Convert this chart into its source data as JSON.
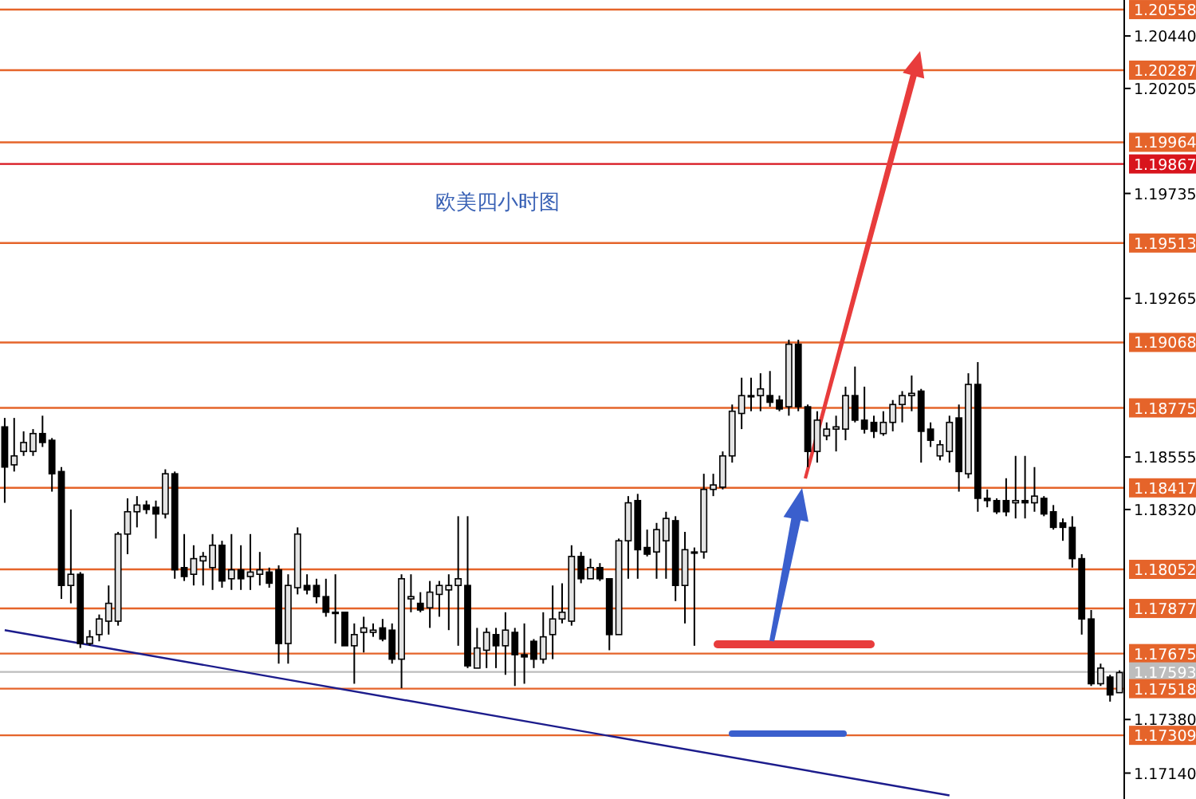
{
  "chart_data": {
    "type": "candlestick",
    "title": "欧美四小时图",
    "categories": [
      null,
      null,
      null,
      null,
      null,
      null,
      null,
      null,
      null,
      null,
      null,
      null,
      null,
      null,
      null,
      null,
      null,
      null,
      null,
      null,
      null,
      null,
      null,
      null,
      null,
      null,
      null,
      null,
      null,
      null,
      null,
      null,
      null,
      null,
      null,
      null,
      null,
      null,
      null,
      null,
      null,
      null,
      null,
      null,
      null,
      null,
      null,
      null,
      null,
      null,
      null,
      null,
      null,
      null,
      null,
      null,
      null,
      null,
      null,
      null,
      null,
      null,
      null,
      null,
      null,
      null,
      null,
      null,
      null,
      null,
      null,
      null,
      null,
      null,
      null,
      null,
      null,
      null,
      null,
      null,
      null,
      null,
      null,
      null,
      null,
      null,
      null,
      null,
      null,
      null,
      null,
      null,
      null,
      null,
      null,
      null,
      null,
      null,
      null,
      null,
      null,
      null,
      null,
      null,
      null,
      null,
      null,
      null,
      null,
      null,
      null,
      null,
      null,
      null,
      null,
      null,
      null,
      null,
      null
    ],
    "series": [
      {
        "type": "line",
        "color": "#1c1c8c",
        "values": [
          1.1778,
          null,
          null,
          null,
          null,
          null,
          null,
          null,
          null,
          null,
          null,
          null,
          null,
          null,
          null,
          null,
          null,
          null,
          null,
          null,
          null,
          null,
          null,
          null,
          null,
          null,
          null,
          null,
          null,
          null,
          null,
          null,
          null,
          null,
          null,
          null,
          null,
          null,
          null,
          null,
          null,
          null,
          null,
          null,
          null,
          null,
          null,
          null,
          null,
          null,
          null,
          null,
          null,
          null,
          null,
          null,
          null,
          null,
          null,
          null,
          null,
          null,
          null,
          null,
          null,
          null,
          null,
          null,
          null,
          null,
          null,
          null,
          null,
          null,
          null,
          null,
          null,
          null,
          null,
          null,
          null,
          null,
          null,
          null,
          null,
          null,
          null,
          null,
          null,
          null,
          null,
          null,
          null,
          null,
          null,
          null,
          null,
          null,
          null,
          null,
          1.1704,
          null,
          null,
          null,
          null,
          null,
          null,
          null,
          null,
          null,
          null,
          null,
          null,
          null,
          null,
          null,
          null,
          null,
          null
        ]
      }
    ],
    "ohlc": [
      [
        1.1869,
        1.1873,
        1.1835,
        1.1851
      ],
      [
        1.1852,
        1.1873,
        1.1849,
        1.1856
      ],
      [
        1.1858,
        1.1867,
        1.1856,
        1.1862
      ],
      [
        1.1858,
        1.1868,
        1.1856,
        1.1866
      ],
      [
        1.1866,
        1.1874,
        1.186,
        1.1862
      ],
      [
        1.1863,
        1.1864,
        1.184,
        1.1848
      ],
      [
        1.1849,
        1.1851,
        1.1792,
        1.1798
      ],
      [
        1.1798,
        1.1832,
        1.179,
        1.1803
      ],
      [
        1.1803,
        1.1804,
        1.177,
        1.1772
      ],
      [
        1.1772,
        1.1778,
        1.1771,
        1.1775
      ],
      [
        1.1776,
        1.1785,
        1.1773,
        1.1783
      ],
      [
        1.1782,
        1.1798,
        1.1776,
        1.179
      ],
      [
        1.1782,
        1.1822,
        1.178,
        1.1821
      ],
      [
        1.1821,
        1.1837,
        1.1812,
        1.1831
      ],
      [
        1.1831,
        1.1838,
        1.1824,
        1.1834
      ],
      [
        1.1834,
        1.1836,
        1.183,
        1.1832
      ],
      [
        1.1833,
        1.1836,
        1.1819,
        1.183
      ],
      [
        1.183,
        1.185,
        1.1828,
        1.1848
      ],
      [
        1.1848,
        1.1849,
        1.1801,
        1.1805
      ],
      [
        1.1806,
        1.1821,
        1.18,
        1.1802
      ],
      [
        1.1803,
        1.1816,
        1.1798,
        1.181
      ],
      [
        1.1809,
        1.1813,
        1.1798,
        1.1811
      ],
      [
        1.1806,
        1.1821,
        1.1796,
        1.1816
      ],
      [
        1.1816,
        1.1818,
        1.1797,
        1.18
      ],
      [
        1.1801,
        1.1821,
        1.1796,
        1.1805
      ],
      [
        1.1805,
        1.1816,
        1.1796,
        1.1801
      ],
      [
        1.1802,
        1.1821,
        1.1796,
        1.1804
      ],
      [
        1.1803,
        1.1813,
        1.1798,
        1.1805
      ],
      [
        1.1804,
        1.1806,
        1.1797,
        1.1799
      ],
      [
        1.1805,
        1.1807,
        1.1763,
        1.1772
      ],
      [
        1.1772,
        1.1803,
        1.1763,
        1.1798
      ],
      [
        1.1797,
        1.1824,
        1.1794,
        1.1821
      ],
      [
        1.1798,
        1.1803,
        1.1794,
        1.1796
      ],
      [
        1.1798,
        1.1801,
        1.179,
        1.1793
      ],
      [
        1.1793,
        1.1801,
        1.1784,
        1.1786
      ],
      [
        1.1786,
        1.1803,
        1.1772,
        1.1786
      ],
      [
        1.1786,
        1.1786,
        1.1771,
        1.1771
      ],
      [
        1.1771,
        1.1781,
        1.1754,
        1.1776
      ],
      [
        1.1777,
        1.1784,
        1.1768,
        1.1779
      ],
      [
        1.1777,
        1.1781,
        1.1775,
        1.1778
      ],
      [
        1.1779,
        1.1783,
        1.1773,
        1.1774
      ],
      [
        1.1778,
        1.1781,
        1.1763,
        1.1765
      ],
      [
        1.1765,
        1.1803,
        1.1752,
        1.1801
      ],
      [
        1.1792,
        1.1803,
        1.1786,
        1.1793
      ],
      [
        1.179,
        1.1795,
        1.1786,
        1.1787
      ],
      [
        1.1788,
        1.18,
        1.1779,
        1.1795
      ],
      [
        1.1794,
        1.18,
        1.1784,
        1.1798
      ],
      [
        1.1796,
        1.1803,
        1.1778,
        1.1798
      ],
      [
        1.1798,
        1.1829,
        1.1771,
        1.1801
      ],
      [
        1.1798,
        1.1829,
        1.1761,
        1.1762
      ],
      [
        1.1761,
        1.1779,
        1.1761,
        1.177
      ],
      [
        1.1769,
        1.1779,
        1.1761,
        1.1777
      ],
      [
        1.1776,
        1.1779,
        1.1761,
        1.1771
      ],
      [
        1.1771,
        1.1786,
        1.1758,
        1.1778
      ],
      [
        1.1777,
        1.1779,
        1.1753,
        1.1767
      ],
      [
        1.1767,
        1.1781,
        1.1754,
        1.1766
      ],
      [
        1.1773,
        1.1774,
        1.1761,
        1.1765
      ],
      [
        1.1765,
        1.1786,
        1.1763,
        1.1775
      ],
      [
        1.1776,
        1.1798,
        1.1765,
        1.1783
      ],
      [
        1.1783,
        1.1799,
        1.1781,
        1.1786
      ],
      [
        1.1782,
        1.1816,
        1.178,
        1.1811
      ],
      [
        1.1811,
        1.1813,
        1.1799,
        1.1801
      ],
      [
        1.1801,
        1.181,
        1.1801,
        1.1806
      ],
      [
        1.1806,
        1.1808,
        1.18,
        1.1801
      ],
      [
        1.1801,
        1.1801,
        1.1769,
        1.1776
      ],
      [
        1.1776,
        1.1819,
        1.1776,
        1.1818
      ],
      [
        1.1818,
        1.1838,
        1.1801,
        1.1835
      ],
      [
        1.1836,
        1.1839,
        1.1801,
        1.1814
      ],
      [
        1.1815,
        1.1823,
        1.1811,
        1.1812
      ],
      [
        1.1813,
        1.1826,
        1.1801,
        1.1823
      ],
      [
        1.1818,
        1.1831,
        1.1801,
        1.1828
      ],
      [
        1.1827,
        1.1829,
        1.1791,
        1.1798
      ],
      [
        1.1798,
        1.1822,
        1.1781,
        1.1814
      ],
      [
        1.1813,
        1.1815,
        1.1771,
        1.1813
      ],
      [
        1.1813,
        1.1848,
        1.181,
        1.1841
      ],
      [
        1.1841,
        1.1848,
        1.1838,
        1.1843
      ],
      [
        1.1842,
        1.1858,
        1.1841,
        1.1856
      ],
      [
        1.1856,
        1.1879,
        1.1853,
        1.1876
      ],
      [
        1.1875,
        1.1891,
        1.1868,
        1.1883
      ],
      [
        1.1883,
        1.1891,
        1.1876,
        1.1883
      ],
      [
        1.1883,
        1.1893,
        1.1876,
        1.1886
      ],
      [
        1.1883,
        1.1894,
        1.1878,
        1.188
      ],
      [
        1.1881,
        1.1883,
        1.1876,
        1.1877
      ],
      [
        1.1878,
        1.1908,
        1.1874,
        1.1906
      ],
      [
        1.1906,
        1.1908,
        1.1876,
        1.1878
      ],
      [
        1.1878,
        1.1879,
        1.1851,
        1.1858
      ],
      [
        1.1858,
        1.1876,
        1.1853,
        1.1872
      ],
      [
        1.1865,
        1.1871,
        1.1863,
        1.1868
      ],
      [
        1.1868,
        1.1874,
        1.1858,
        1.1869
      ],
      [
        1.1868,
        1.1887,
        1.1863,
        1.1883
      ],
      [
        1.1883,
        1.1896,
        1.1871,
        1.1872
      ],
      [
        1.1872,
        1.1887,
        1.1866,
        1.1868
      ],
      [
        1.1871,
        1.1874,
        1.1864,
        1.1867
      ],
      [
        1.1866,
        1.1876,
        1.1865,
        1.1871
      ],
      [
        1.1871,
        1.1881,
        1.1867,
        1.1879
      ],
      [
        1.1879,
        1.1885,
        1.1871,
        1.1883
      ],
      [
        1.1883,
        1.1892,
        1.1876,
        1.1884
      ],
      [
        1.1885,
        1.1886,
        1.1853,
        1.1867
      ],
      [
        1.1868,
        1.1871,
        1.186,
        1.1863
      ],
      [
        1.1856,
        1.1863,
        1.1854,
        1.1861
      ],
      [
        1.1858,
        1.1874,
        1.1853,
        1.1871
      ],
      [
        1.1873,
        1.1879,
        1.184,
        1.1849
      ],
      [
        1.1848,
        1.1893,
        1.1846,
        1.1888
      ],
      [
        1.1888,
        1.1898,
        1.1831,
        1.1837
      ],
      [
        1.1837,
        1.1841,
        1.1833,
        1.1836
      ],
      [
        1.1836,
        1.1837,
        1.183,
        1.1831
      ],
      [
        1.1836,
        1.1846,
        1.1829,
        1.1831
      ],
      [
        1.1835,
        1.1856,
        1.1828,
        1.1836
      ],
      [
        1.1836,
        1.1856,
        1.1828,
        1.1835
      ],
      [
        1.1835,
        1.1851,
        1.1831,
        1.1838
      ],
      [
        1.1837,
        1.1838,
        1.1829,
        1.183
      ],
      [
        1.1831,
        1.1834,
        1.1823,
        1.1824
      ],
      [
        1.1826,
        1.1828,
        1.1818,
        1.1824
      ],
      [
        1.1824,
        1.1829,
        1.1806,
        1.181
      ],
      [
        1.181,
        1.1812,
        1.1776,
        1.1783
      ],
      [
        1.1783,
        1.1787,
        1.1753,
        1.1754
      ],
      [
        1.1754,
        1.1763,
        1.1753,
        1.1761
      ],
      [
        1.1757,
        1.1758,
        1.1746,
        1.1749
      ],
      [
        1.175,
        1.176,
        1.175,
        1.1759
      ]
    ],
    "ylim": [
      1.17024,
      1.20601
    ],
    "yticks": [
      {
        "value": 1.2044,
        "label": "1.20440"
      },
      {
        "value": 1.20205,
        "label": "1.20205"
      },
      {
        "value": 1.19735,
        "label": "1.19735"
      },
      {
        "value": 1.19265,
        "label": "1.19265"
      },
      {
        "value": 1.18555,
        "label": "1.18555"
      },
      {
        "value": 1.1832,
        "label": "1.18320"
      },
      {
        "value": 1.1738,
        "label": "1.17380"
      },
      {
        "value": 1.1714,
        "label": "1.17140"
      }
    ],
    "tick_labels": "y",
    "ref_lines": [
      {
        "axis": "y",
        "value": 1.20558,
        "label": "1.20558",
        "color": "#e5642a"
      },
      {
        "axis": "y",
        "value": 1.20287,
        "label": "1.20287",
        "color": "#e5642a"
      },
      {
        "axis": "y",
        "value": 1.19964,
        "label": "1.19964",
        "color": "#e5642a"
      },
      {
        "axis": "y",
        "value": 1.19867,
        "label": "1.19867",
        "color": "#d8141c"
      },
      {
        "axis": "y",
        "value": 1.19513,
        "label": "1.19513",
        "color": "#e5642a"
      },
      {
        "axis": "y",
        "value": 1.19068,
        "label": "1.19068",
        "color": "#e5642a"
      },
      {
        "axis": "y",
        "value": 1.18775,
        "label": "1.18775",
        "color": "#e5642a"
      },
      {
        "axis": "y",
        "value": 1.18417,
        "label": "1.18417",
        "color": "#e5642a"
      },
      {
        "axis": "y",
        "value": 1.18052,
        "label": "1.18052",
        "color": "#e5642a"
      },
      {
        "axis": "y",
        "value": 1.17877,
        "label": "1.17877",
        "color": "#e5642a"
      },
      {
        "axis": "y",
        "value": 1.17675,
        "label": "1.17675",
        "color": "#e5642a"
      },
      {
        "axis": "y",
        "value": 1.17593,
        "label": "1.17593",
        "color": "#bdbdbd"
      },
      {
        "axis": "y",
        "value": 1.17518,
        "label": "1.17518",
        "color": "#e5642a"
      },
      {
        "axis": "y",
        "value": 1.17309,
        "label": "1.17309",
        "color": "#e5642a"
      }
    ]
  }
}
